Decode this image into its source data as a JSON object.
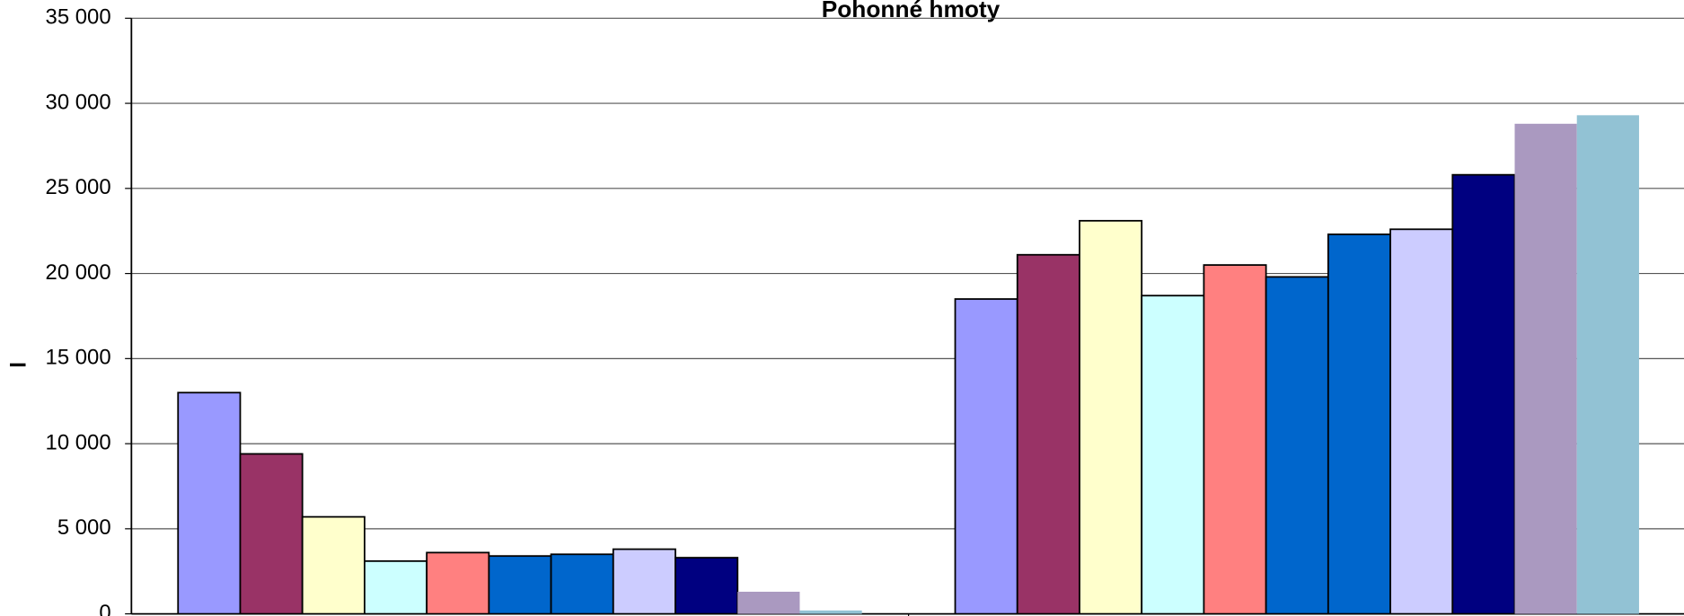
{
  "chart_data": {
    "type": "bar",
    "title": "Pohonné hmoty",
    "y_label": "l",
    "categories": [
      null,
      null
    ],
    "series": [
      {
        "color": "#9999FF",
        "outline": true,
        "values": [
          13000,
          18500
        ]
      },
      {
        "color": "#993366",
        "outline": true,
        "values": [
          9400,
          21100
        ]
      },
      {
        "color": "#FFFFCC",
        "outline": true,
        "values": [
          5700,
          23100
        ]
      },
      {
        "color": "#CCFFFF",
        "outline": true,
        "values": [
          3100,
          18700
        ]
      },
      {
        "color": "#FF8080",
        "outline": true,
        "values": [
          3600,
          20500
        ]
      },
      {
        "color": "#0066CC",
        "outline": true,
        "values": [
          3400,
          19800
        ]
      },
      {
        "color": "#0066CC",
        "outline": true,
        "values": [
          3500,
          22300
        ]
      },
      {
        "color": "#CCCCFF",
        "outline": true,
        "values": [
          3800,
          22600
        ]
      },
      {
        "color": "#000080",
        "outline": true,
        "values": [
          3300,
          25800
        ]
      },
      {
        "color": "#AA99C0",
        "outline": false,
        "values": [
          1300,
          28800
        ]
      },
      {
        "color": "#92C2D4",
        "outline": false,
        "values": [
          200,
          29300
        ]
      }
    ],
    "ylim": [
      0,
      35000
    ],
    "yticks": [
      0,
      {
        "value": 5000,
        "label": "5 000"
      },
      {
        "value": 10000,
        "label": "10 000"
      },
      {
        "value": 15000,
        "label": "15 000"
      },
      {
        "value": 20000,
        "label": "20 000"
      },
      {
        "value": 25000,
        "label": "25 000"
      },
      {
        "value": 30000,
        "label": "30 000"
      },
      {
        "value": 35000,
        "label": "35 000"
      }
    ],
    "grid": true
  }
}
